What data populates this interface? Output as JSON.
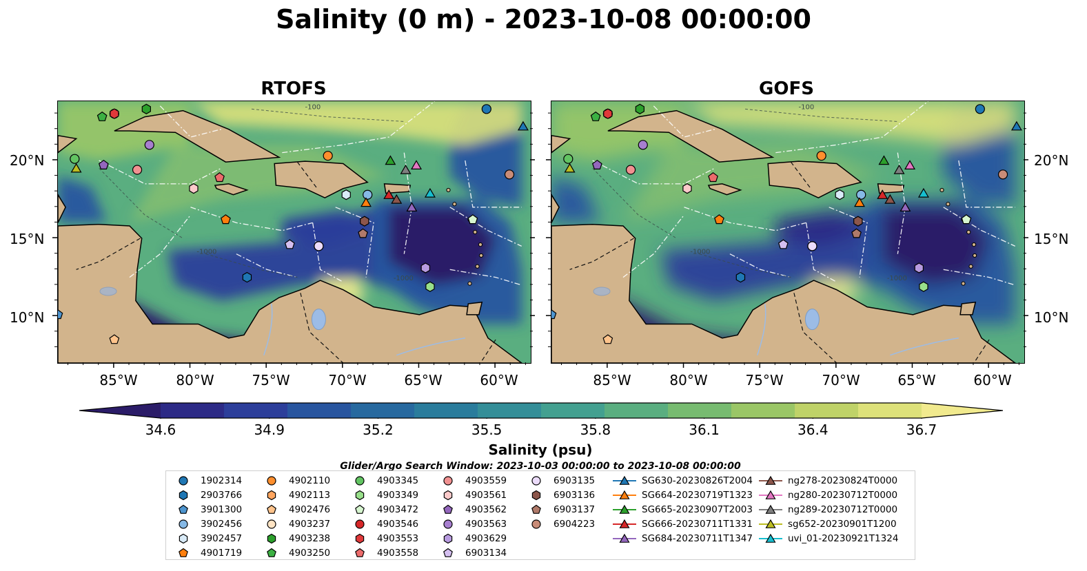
{
  "title": "Salinity (0 m) - 2023-10-08 00:00:00",
  "panels": [
    {
      "title": "RTOFS"
    },
    {
      "title": "GOFS"
    }
  ],
  "x_ticks": [
    "85°W",
    "80°W",
    "75°W",
    "70°W",
    "65°W",
    "60°W"
  ],
  "y_ticks": [
    "20°N",
    "15°N",
    "10°N"
  ],
  "map_contours": [
    "-100",
    "-1000",
    "-1000"
  ],
  "colorbar": {
    "label": "Salinity (psu)",
    "ticks": [
      "34.6",
      "34.9",
      "35.2",
      "35.5",
      "35.8",
      "36.1",
      "36.4",
      "36.7"
    ],
    "colors": [
      "#2b1c68",
      "#2c2a86",
      "#2c3e9a",
      "#28559f",
      "#27699f",
      "#2a7c9c",
      "#348e98",
      "#43a090",
      "#5aae80",
      "#77bb70",
      "#9ac666",
      "#bfd268",
      "#dde17a",
      "#f1ea8e"
    ]
  },
  "search_window": "Glider/Argo Search Window: 2023-10-03 00:00:00 to 2023-10-08 00:00:00",
  "legend": [
    {
      "label": "1902314",
      "marker": "circle",
      "color": "#1f77b4"
    },
    {
      "label": "2903766",
      "marker": "hexagon",
      "color": "#1f77b4"
    },
    {
      "label": "3901300",
      "marker": "pentagon",
      "color": "#4e95cf"
    },
    {
      "label": "3902456",
      "marker": "circle",
      "color": "#86b9e6"
    },
    {
      "label": "3902457",
      "marker": "hexagon",
      "color": "#d9ebf8"
    },
    {
      "label": "4901719",
      "marker": "pentagon",
      "color": "#ff7f0e"
    },
    {
      "label": "4902110",
      "marker": "circle",
      "color": "#ff8f2e"
    },
    {
      "label": "4902113",
      "marker": "hexagon",
      "color": "#ffa55e"
    },
    {
      "label": "4902476",
      "marker": "pentagon",
      "color": "#ffc48c"
    },
    {
      "label": "4903237",
      "marker": "circle",
      "color": "#ffe4c4"
    },
    {
      "label": "4903238",
      "marker": "hexagon",
      "color": "#2ca02c"
    },
    {
      "label": "4903250",
      "marker": "pentagon",
      "color": "#3cb043"
    },
    {
      "label": "4903345",
      "marker": "circle",
      "color": "#62c462"
    },
    {
      "label": "4903349",
      "marker": "hexagon",
      "color": "#98df8a"
    },
    {
      "label": "4903472",
      "marker": "pentagon",
      "color": "#d6f5cf"
    },
    {
      "label": "4903546",
      "marker": "circle",
      "color": "#d62728"
    },
    {
      "label": "4903553",
      "marker": "hexagon",
      "color": "#e0393a"
    },
    {
      "label": "4903558",
      "marker": "pentagon",
      "color": "#ec6b6b"
    },
    {
      "label": "4903559",
      "marker": "circle",
      "color": "#f19191"
    },
    {
      "label": "4903561",
      "marker": "hexagon",
      "color": "#fbcaca"
    },
    {
      "label": "4903562",
      "marker": "pentagon",
      "color": "#9467bd"
    },
    {
      "label": "4903563",
      "marker": "circle",
      "color": "#a77fcf"
    },
    {
      "label": "4903629",
      "marker": "hexagon",
      "color": "#b89be0"
    },
    {
      "label": "6903134",
      "marker": "pentagon",
      "color": "#d4bff0"
    },
    {
      "label": "6903135",
      "marker": "circle",
      "color": "#ecdcfb"
    },
    {
      "label": "6903136",
      "marker": "hexagon",
      "color": "#8c564b"
    },
    {
      "label": "6903137",
      "marker": "pentagon",
      "color": "#b07a6a"
    },
    {
      "label": "6904223",
      "marker": "circle",
      "color": "#c98c78"
    },
    {
      "label": "SG630-20230826T2004",
      "marker": "triangle-line",
      "color": "#1f77b4"
    },
    {
      "label": "SG664-20230719T1323",
      "marker": "triangle-line",
      "color": "#ff7f0e"
    },
    {
      "label": "SG665-20230907T2003",
      "marker": "triangle-line",
      "color": "#2ca02c"
    },
    {
      "label": "SG666-20230711T1331",
      "marker": "triangle-line",
      "color": "#d62728"
    },
    {
      "label": "SG684-20230711T1347",
      "marker": "triangle-line",
      "color": "#9467bd"
    },
    {
      "label": "ng278-20230824T0000",
      "marker": "triangle-line",
      "color": "#8c564b"
    },
    {
      "label": "ng280-20230712T0000",
      "marker": "triangle-line",
      "color": "#e377c2"
    },
    {
      "label": "ng289-20230712T0000",
      "marker": "triangle-line",
      "color": "#7f7f7f"
    },
    {
      "label": "sg652-20230901T1200",
      "marker": "triangle-line",
      "color": "#bcbd22"
    },
    {
      "label": "uvi_01-20230921T1324",
      "marker": "triangle-line",
      "color": "#17becf"
    }
  ],
  "land_color": "#d2b48c",
  "lake_color": "#9cbce6"
}
